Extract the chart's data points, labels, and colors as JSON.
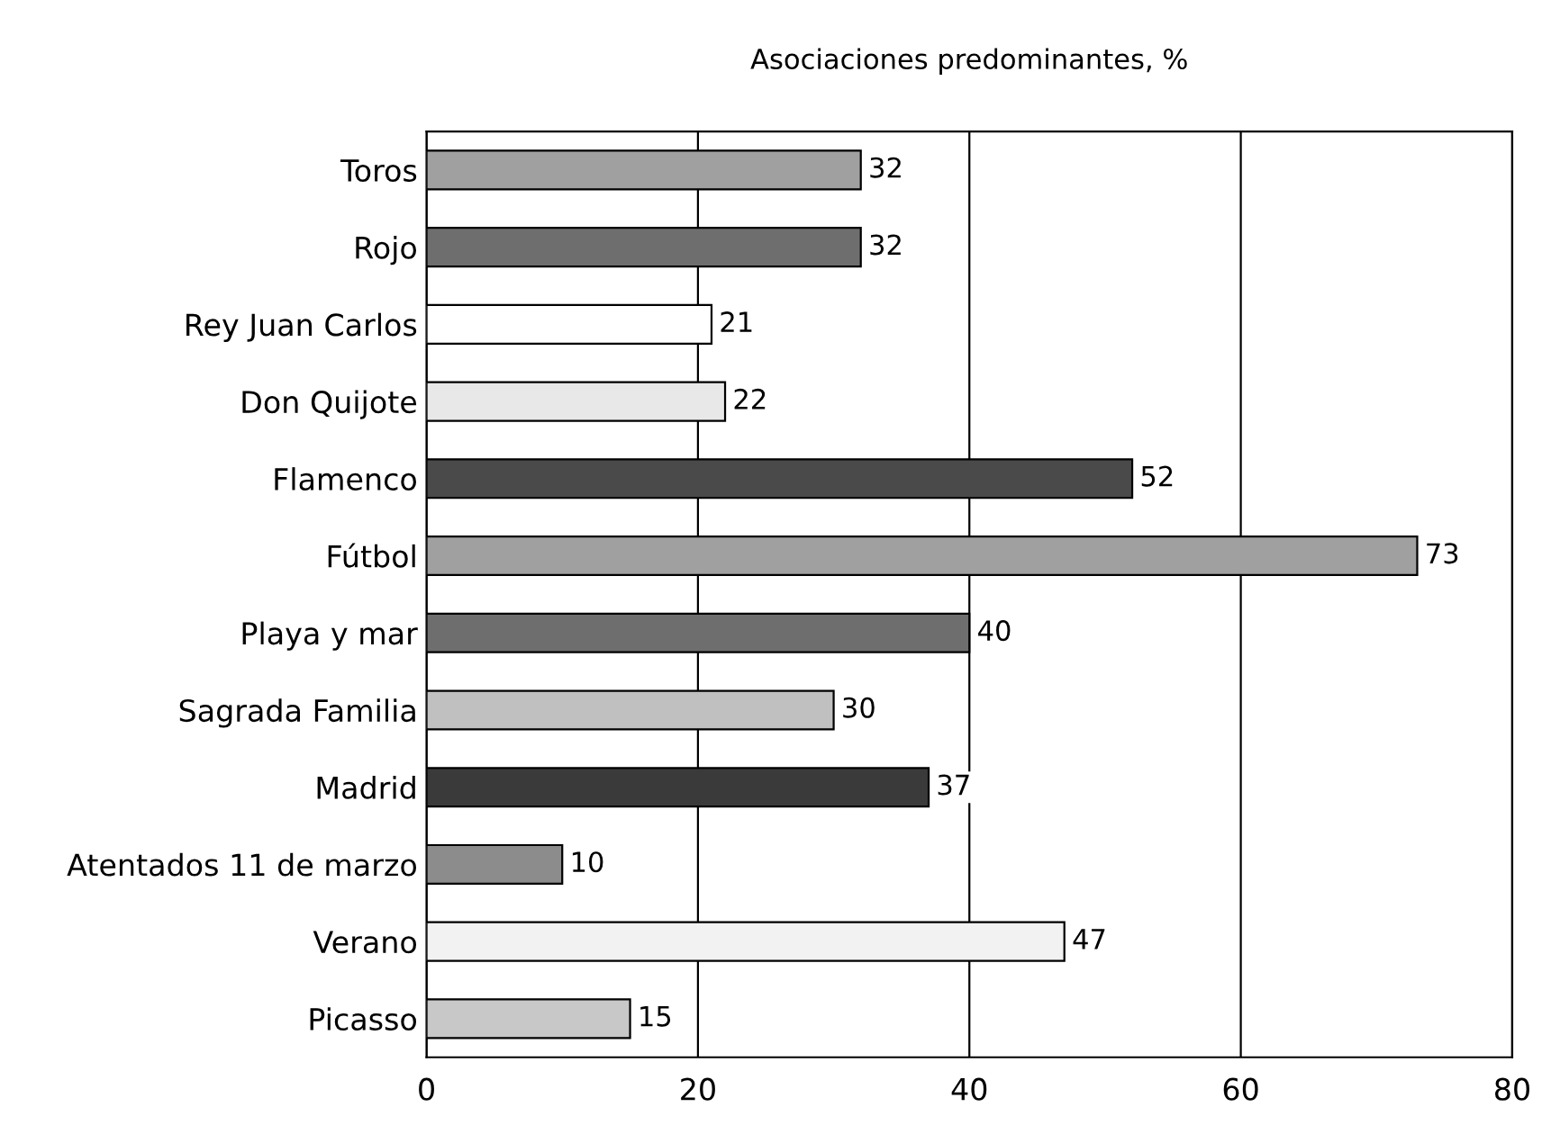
{
  "chart_data": {
    "type": "bar",
    "orientation": "horizontal",
    "title": "Asociaciones predominantes, %",
    "categories": [
      "Toros",
      "Rojo",
      "Rey Juan Carlos",
      "Don Quijote",
      "Flamenco",
      "Fútbol",
      "Playa y mar",
      "Sagrada Familia",
      "Madrid",
      "Atentados 11 de marzo",
      "Verano",
      "Picasso"
    ],
    "values": [
      32,
      32,
      21,
      22,
      52,
      73,
      40,
      30,
      37,
      10,
      47,
      15
    ],
    "colors": [
      "#a0a0a0",
      "#6e6e6e",
      "#ffffff",
      "#e8e8e8",
      "#4a4a4a",
      "#a0a0a0",
      "#6e6e6e",
      "#c0c0c0",
      "#3a3a3a",
      "#8c8c8c",
      "#f2f2f2",
      "#c8c8c8"
    ],
    "xlim": [
      0,
      80
    ],
    "xticks": [
      0,
      20,
      40,
      60,
      80
    ],
    "grid": "x",
    "data_labels": true
  }
}
